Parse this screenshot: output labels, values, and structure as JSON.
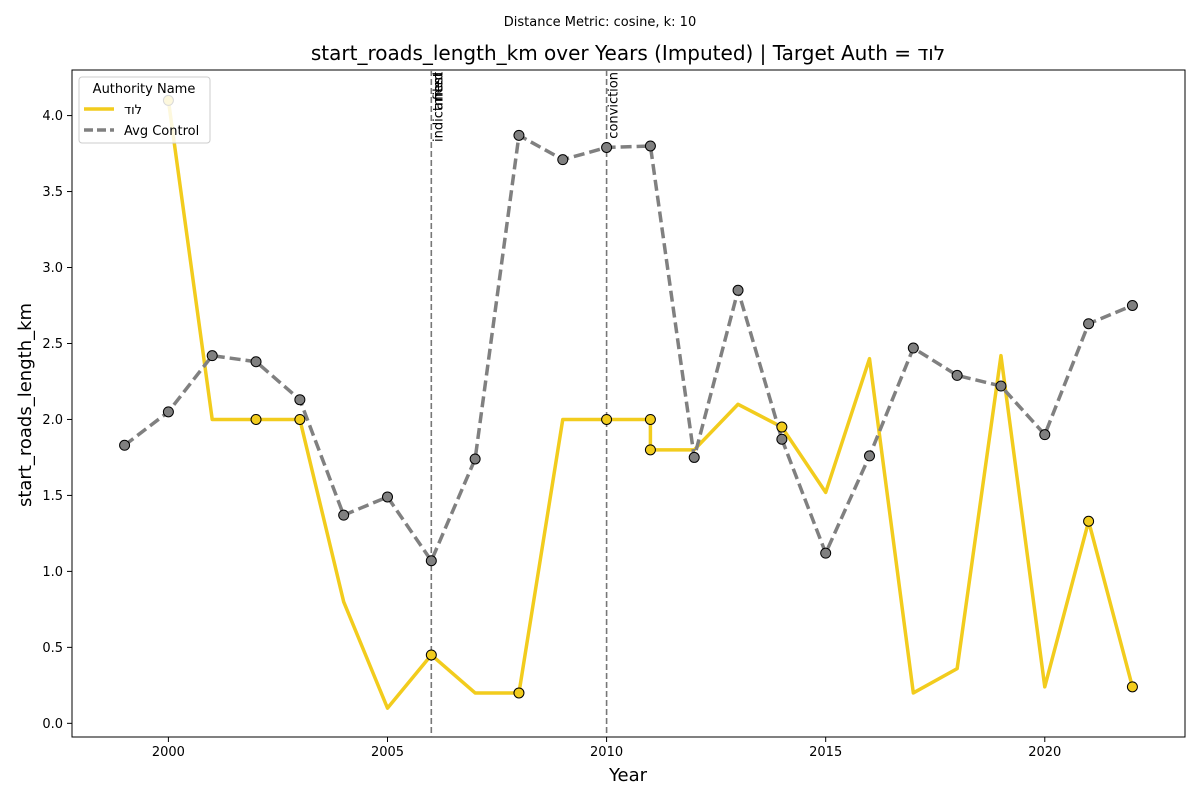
{
  "chart_data": {
    "type": "line",
    "subtitle": "Distance Metric: cosine, k: 10",
    "title": "start_roads_length_km over Years (Imputed) | Target Auth = לוד",
    "xlabel": "Year",
    "ylabel": "start_roads_length_km",
    "xlim": [
      1997.8,
      2023.2
    ],
    "ylim": [
      -0.09,
      4.3
    ],
    "xticks": [
      2000,
      2005,
      2010,
      2015,
      2020
    ],
    "yticks": [
      0.0,
      0.5,
      1.0,
      1.5,
      2.0,
      2.5,
      3.0,
      3.5,
      4.0
    ],
    "grid": false,
    "legend": {
      "title": "Authority Name",
      "position": "top-left"
    },
    "events": [
      {
        "x": 2006,
        "labels": [
          "indictment",
          "filed",
          "arrest"
        ]
      },
      {
        "x": 2010,
        "labels": [
          "conviction"
        ]
      }
    ],
    "series": [
      {
        "name": "לוד",
        "color": "#f2cc1d",
        "style": "solid",
        "points": [
          {
            "x": 2000,
            "y": 4.1,
            "marker": true
          },
          {
            "x": 2001,
            "y": 2.0,
            "marker": false
          },
          {
            "x": 2002,
            "y": 2.0,
            "marker": true
          },
          {
            "x": 2003,
            "y": 2.0,
            "marker": true
          },
          {
            "x": 2004,
            "y": 0.8,
            "marker": false
          },
          {
            "x": 2005,
            "y": 0.1,
            "marker": false
          },
          {
            "x": 2006,
            "y": 0.45,
            "marker": true
          },
          {
            "x": 2007,
            "y": 0.2,
            "marker": false
          },
          {
            "x": 2008,
            "y": 0.2,
            "marker": true
          },
          {
            "x": 2009,
            "y": 2.0,
            "marker": false
          },
          {
            "x": 2010,
            "y": 2.0,
            "marker": true
          },
          {
            "x": 2011,
            "y": 2.0,
            "marker": true
          },
          {
            "x": 2011,
            "y": 1.8,
            "marker": true
          },
          {
            "x": 2012,
            "y": 1.8,
            "marker": false
          },
          {
            "x": 2013,
            "y": 2.1,
            "marker": false
          },
          {
            "x": 2014,
            "y": 1.95,
            "marker": true
          },
          {
            "x": 2015,
            "y": 1.52,
            "marker": false
          },
          {
            "x": 2016,
            "y": 2.4,
            "marker": false
          },
          {
            "x": 2017,
            "y": 0.2,
            "marker": false
          },
          {
            "x": 2018,
            "y": 0.36,
            "marker": false
          },
          {
            "x": 2019,
            "y": 2.42,
            "marker": false
          },
          {
            "x": 2020,
            "y": 0.24,
            "marker": false
          },
          {
            "x": 2021,
            "y": 1.33,
            "marker": true
          },
          {
            "x": 2022,
            "y": 0.24,
            "marker": true
          }
        ]
      },
      {
        "name": "Avg Control",
        "color": "#808080",
        "style": "dashed",
        "points": [
          {
            "x": 1999,
            "y": 1.83,
            "marker": true
          },
          {
            "x": 2000,
            "y": 2.05,
            "marker": true
          },
          {
            "x": 2001,
            "y": 2.42,
            "marker": true
          },
          {
            "x": 2002,
            "y": 2.38,
            "marker": true
          },
          {
            "x": 2003,
            "y": 2.13,
            "marker": true
          },
          {
            "x": 2004,
            "y": 1.37,
            "marker": true
          },
          {
            "x": 2005,
            "y": 1.49,
            "marker": true
          },
          {
            "x": 2006,
            "y": 1.07,
            "marker": true
          },
          {
            "x": 2007,
            "y": 1.74,
            "marker": true
          },
          {
            "x": 2008,
            "y": 3.87,
            "marker": true
          },
          {
            "x": 2009,
            "y": 3.71,
            "marker": true
          },
          {
            "x": 2010,
            "y": 3.79,
            "marker": true
          },
          {
            "x": 2011,
            "y": 3.8,
            "marker": true
          },
          {
            "x": 2012,
            "y": 1.75,
            "marker": true
          },
          {
            "x": 2013,
            "y": 2.85,
            "marker": true
          },
          {
            "x": 2014,
            "y": 1.87,
            "marker": true
          },
          {
            "x": 2015,
            "y": 1.12,
            "marker": true
          },
          {
            "x": 2016,
            "y": 1.76,
            "marker": true
          },
          {
            "x": 2017,
            "y": 2.47,
            "marker": true
          },
          {
            "x": 2018,
            "y": 2.29,
            "marker": true
          },
          {
            "x": 2019,
            "y": 2.22,
            "marker": true
          },
          {
            "x": 2020,
            "y": 1.9,
            "marker": true
          },
          {
            "x": 2021,
            "y": 2.63,
            "marker": true
          },
          {
            "x": 2022,
            "y": 2.75,
            "marker": true
          }
        ]
      }
    ]
  }
}
